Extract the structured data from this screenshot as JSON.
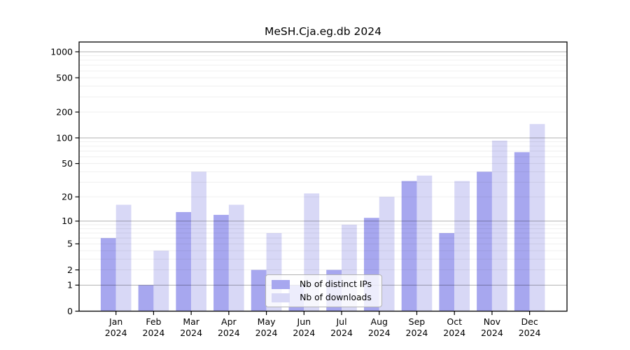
{
  "chart_data": {
    "type": "bar",
    "title": "MeSH.Cja.eg.db 2024",
    "xlabel": "",
    "ylabel": "",
    "categories": [
      "Jan",
      "Feb",
      "Mar",
      "Apr",
      "May",
      "Jun",
      "Jul",
      "Aug",
      "Sep",
      "Oct",
      "Nov",
      "Dec"
    ],
    "x_tick_second_line": "2024",
    "series": [
      {
        "name": "Nb of distinct IPs",
        "color": "#a7a7ef",
        "values": [
          6,
          1,
          13,
          12,
          2,
          1,
          2,
          11,
          31,
          7,
          40,
          68
        ]
      },
      {
        "name": "Nb of downloads",
        "color": "#d8d8f6",
        "values": [
          16,
          4,
          40,
          16,
          7,
          22,
          9,
          20,
          36,
          31,
          93,
          145
        ]
      }
    ],
    "y_axis": {
      "scale": "log10(1+x)",
      "tick_labels": [
        0,
        1,
        2,
        5,
        10,
        20,
        50,
        100,
        200,
        500,
        1000
      ],
      "ylim": [
        0,
        1300
      ]
    },
    "grid": {
      "shown": true,
      "major_at": [
        1,
        10,
        100,
        1000
      ],
      "minor_at": [
        2,
        3,
        4,
        5,
        6,
        7,
        8,
        9,
        20,
        30,
        40,
        50,
        60,
        70,
        80,
        90,
        200,
        300,
        400,
        500,
        600,
        700,
        800,
        900
      ]
    },
    "legend": {
      "position": "lower center",
      "entries": [
        "Nb of distinct IPs",
        "Nb of downloads"
      ]
    }
  }
}
